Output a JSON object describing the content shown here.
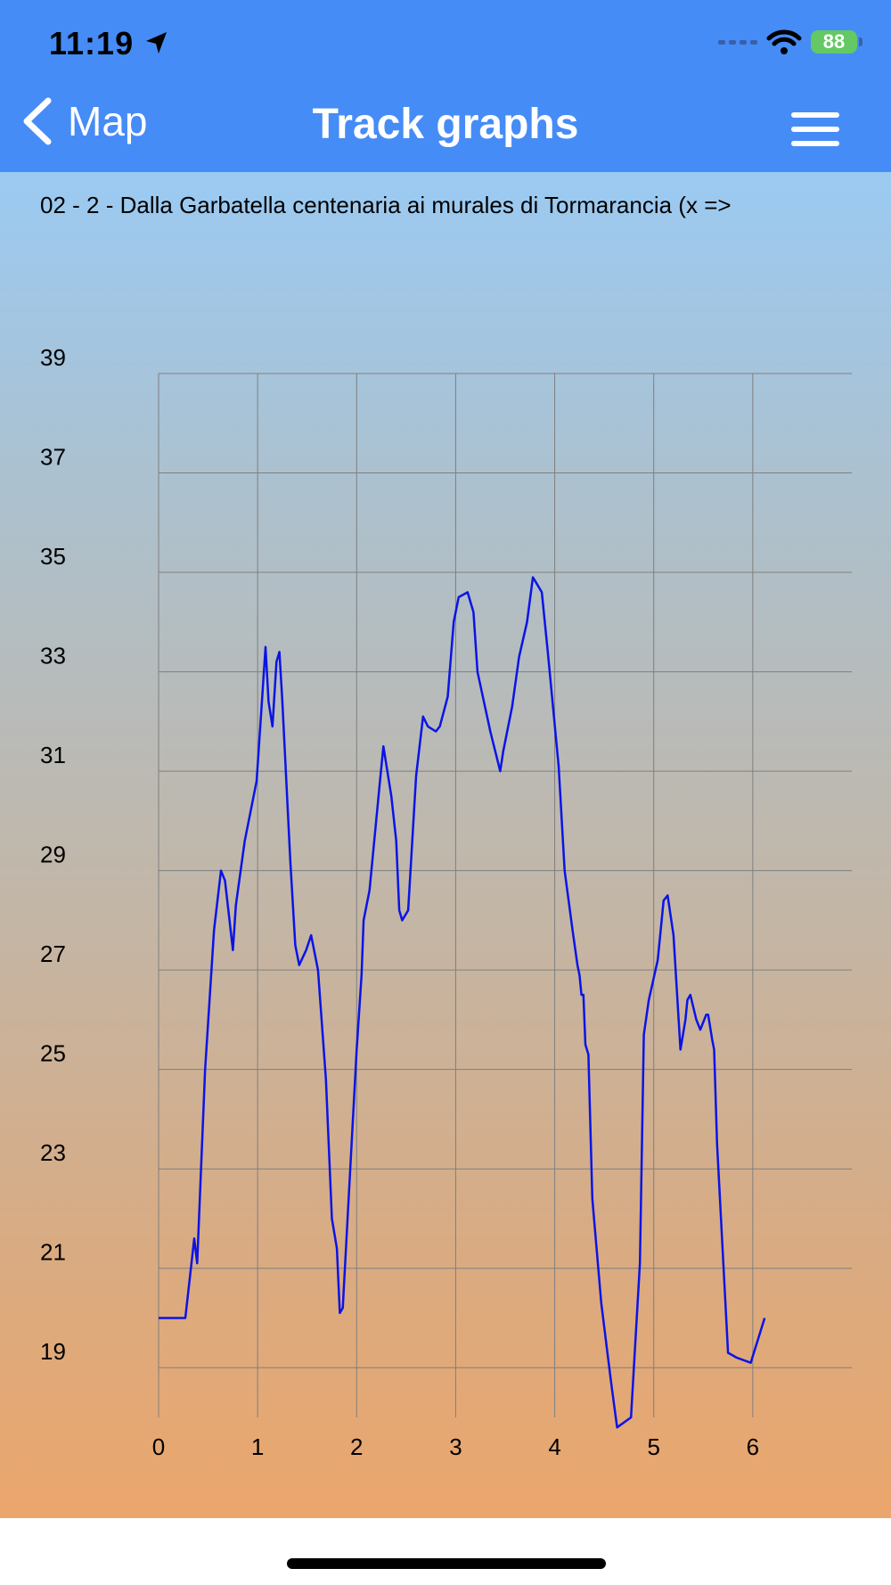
{
  "status_bar": {
    "time": "11:19",
    "battery": "88"
  },
  "nav": {
    "back_label": "Map",
    "title": "Track graphs"
  },
  "track_title": "02 - 2 - Dalla Garbatella centenaria ai murales di Tormarancia (x =>",
  "colors": {
    "header": "#468cf7",
    "line": "#0a14e6",
    "grid": "#7f7f7f"
  },
  "icons": {
    "back": "chevron-left-icon",
    "menu": "hamburger-menu-icon",
    "location": "location-arrow-icon",
    "wifi": "wifi-icon",
    "battery": "battery-icon"
  },
  "chart_data": {
    "type": "line",
    "xlim": [
      0,
      7
    ],
    "ylim": [
      18,
      39
    ],
    "x_ticks": [
      0,
      1,
      2,
      3,
      4,
      5,
      6
    ],
    "y_ticks": [
      19,
      21,
      23,
      25,
      27,
      29,
      31,
      33,
      35,
      37,
      39
    ],
    "grid": true,
    "series": [
      {
        "x": [
          0,
          0.27,
          0.36,
          0.39,
          0.47,
          0.56,
          0.63,
          0.67,
          0.75,
          0.78,
          0.87,
          0.99,
          1.05,
          1.08,
          1.11,
          1.15,
          1.19,
          1.22,
          1.25,
          1.33,
          1.38,
          1.42,
          1.49,
          1.54,
          1.61,
          1.69,
          1.75,
          1.8,
          1.83,
          1.86,
          2.0,
          2.05,
          2.07,
          2.13,
          2.24,
          2.27,
          2.35,
          2.4,
          2.43,
          2.46,
          2.52,
          2.6,
          2.67,
          2.72,
          2.8,
          2.84,
          2.92,
          2.98,
          3.03,
          3.12,
          3.18,
          3.22,
          3.35,
          3.45,
          3.48,
          3.57,
          3.64,
          3.72,
          3.78,
          3.81,
          3.87,
          3.93,
          4.04,
          4.1,
          4.18,
          4.23,
          4.25,
          4.27,
          4.29,
          4.31,
          4.34,
          4.38,
          4.47,
          4.57,
          4.63,
          4.77,
          4.86,
          4.9,
          4.95,
          5.04,
          5.1,
          5.14,
          5.2,
          5.27,
          5.32,
          5.34,
          5.37,
          5.43,
          5.47,
          5.53,
          5.55,
          5.59,
          5.61,
          5.64,
          5.75,
          5.84,
          5.98,
          6.12
        ],
        "y": [
          20,
          20,
          21.6,
          21.1,
          25,
          27.8,
          29,
          28.8,
          27.4,
          28.3,
          29.6,
          30.8,
          32.6,
          33.5,
          32.4,
          31.9,
          33.2,
          33.4,
          32.4,
          29.2,
          27.5,
          27.1,
          27.4,
          27.7,
          27,
          24.8,
          22,
          21.4,
          20.1,
          20.2,
          25.4,
          26.9,
          28,
          28.6,
          30.9,
          31.5,
          30.5,
          29.6,
          28.2,
          28,
          28.2,
          30.9,
          32.1,
          31.9,
          31.8,
          31.9,
          32.5,
          34,
          34.5,
          34.6,
          34.2,
          33,
          31.8,
          31,
          31.4,
          32.3,
          33.3,
          34,
          34.9,
          34.8,
          34.6,
          33.4,
          31.1,
          29,
          27.8,
          27.1,
          26.9,
          26.5,
          26.5,
          25.5,
          25.3,
          22.4,
          20.3,
          18.7,
          17.8,
          18,
          21.1,
          25.7,
          26.4,
          27.2,
          28.4,
          28.5,
          27.7,
          25.4,
          26,
          26.4,
          26.5,
          26,
          25.8,
          26.1,
          26.1,
          25.6,
          25.4,
          23.5,
          19.3,
          19.2,
          19.1,
          20
        ]
      }
    ]
  }
}
